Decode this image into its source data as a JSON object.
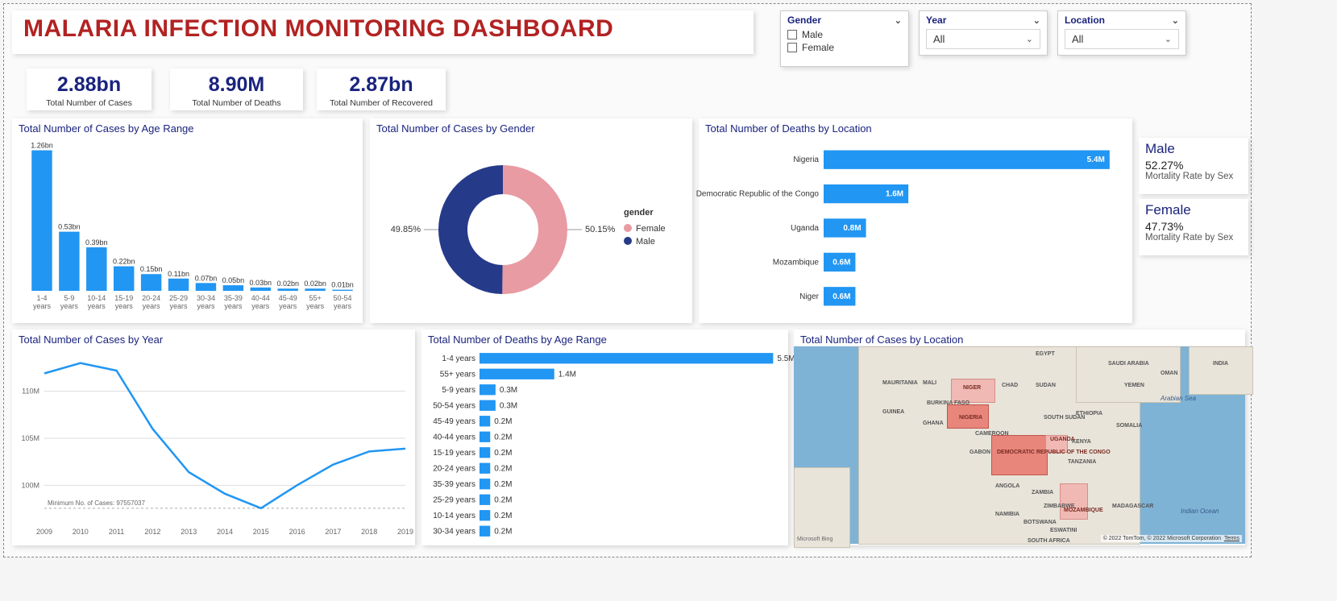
{
  "title": "MALARIA INFECTION MONITORING DASHBOARD",
  "filters": {
    "gender": {
      "label": "Gender",
      "options": [
        "Male",
        "Female"
      ]
    },
    "year": {
      "label": "Year",
      "selected": "All"
    },
    "location": {
      "label": "Location",
      "selected": "All"
    }
  },
  "kpis": {
    "cases": {
      "value": "2.88bn",
      "label": "Total Number of Cases"
    },
    "deaths": {
      "value": "8.90M",
      "label": "Total Number of Deaths"
    },
    "recovered": {
      "value": "2.87bn",
      "label": "Total Number of Recovered"
    }
  },
  "rate_cards": {
    "male": {
      "title": "Male",
      "pct": "52.27%",
      "sub": "Mortality Rate by Sex"
    },
    "female": {
      "title": "Female",
      "pct": "47.73%",
      "sub": "Mortality Rate by Sex"
    }
  },
  "cases_by_age": {
    "type": "bar",
    "title": "Total Number of Cases by Age Range",
    "bar_color": "#2196f3",
    "label_color": "#333333",
    "categories": [
      "1-4 years",
      "5-9 years",
      "10-14 years",
      "15-19 years",
      "20-24 years",
      "25-29 years",
      "30-34 years",
      "35-39 years",
      "40-44 years",
      "45-49 years",
      "55+ years",
      "50-54 years"
    ],
    "value_labels": [
      "1.26bn",
      "0.53bn",
      "0.39bn",
      "0.22bn",
      "0.15bn",
      "0.11bn",
      "0.07bn",
      "0.05bn",
      "0.03bn",
      "0.02bn",
      "0.02bn",
      "0.01bn"
    ],
    "values": [
      1.26,
      0.53,
      0.39,
      0.22,
      0.15,
      0.11,
      0.07,
      0.05,
      0.03,
      0.02,
      0.02,
      0.01
    ],
    "ymax": 1.3
  },
  "cases_by_gender": {
    "type": "donut",
    "title": "Total Number of Cases by Gender",
    "legend_title": "gender",
    "slices": [
      {
        "name": "Female",
        "pct": 50.15,
        "label": "50.15%",
        "color": "#e89ba3"
      },
      {
        "name": "Male",
        "pct": 49.85,
        "label": "49.85%",
        "color": "#263a8a"
      }
    ],
    "inner_radius_ratio": 0.55,
    "background_color": "#ffffff"
  },
  "deaths_by_location": {
    "type": "horizontal-bar",
    "title": "Total Number of Deaths by Location",
    "bar_color": "#2196f3",
    "value_color": "#ffffff",
    "categories": [
      "Nigeria",
      "Democratic Republic of the Congo",
      "Uganda",
      "Mozambique",
      "Niger"
    ],
    "value_labels": [
      "5.4M",
      "1.6M",
      "0.8M",
      "0.6M",
      "0.6M"
    ],
    "values": [
      5.4,
      1.6,
      0.8,
      0.6,
      0.6
    ],
    "xmax": 5.6
  },
  "cases_by_year": {
    "type": "line",
    "title": "Total Number of Cases by Year",
    "line_color": "#2196f3",
    "grid_color": "#dddddd",
    "x": [
      2009,
      2010,
      2011,
      2012,
      2013,
      2014,
      2015,
      2016,
      2017,
      2018,
      2019
    ],
    "y": [
      111.9,
      113.0,
      112.2,
      106.0,
      101.4,
      99.1,
      97.56,
      100.0,
      102.2,
      103.6,
      103.9
    ],
    "ylabels": [
      "100M",
      "105M",
      "110M"
    ],
    "yticks": [
      100,
      105,
      110
    ],
    "ylim": [
      96,
      114
    ],
    "min_line_value": 97.557037,
    "min_line_label": "Minimum No. of Cases: 97557037"
  },
  "deaths_by_age": {
    "type": "horizontal-bar",
    "title": "Total Number of Deaths by Age Range",
    "bar_color": "#2196f3",
    "categories": [
      "1-4 years",
      "55+ years",
      "5-9 years",
      "50-54 years",
      "45-49 years",
      "40-44 years",
      "15-19 years",
      "20-24 years",
      "35-39 years",
      "25-29 years",
      "10-14 years",
      "30-34 years"
    ],
    "value_labels": [
      "5.5M",
      "1.4M",
      "0.3M",
      "0.3M",
      "0.2M",
      "0.2M",
      "0.2M",
      "0.2M",
      "0.2M",
      "0.2M",
      "0.2M",
      "0.2M"
    ],
    "values": [
      5.5,
      1.4,
      0.3,
      0.3,
      0.2,
      0.2,
      0.2,
      0.2,
      0.2,
      0.2,
      0.2,
      0.2
    ],
    "xmax": 5.6
  },
  "cases_by_location_map": {
    "type": "map",
    "title": "Total Number of Cases by Location",
    "ocean_color": "#7eb3d6",
    "land_color": "#e8e4da",
    "highlight_color": "#e8867c",
    "highlight_light_color": "#f0b9b3",
    "highlighted_countries": [
      "NIGERIA",
      "DEMOCRATIC REPUBLIC OF THE CONGO",
      "UGANDA",
      "MOZAMBIQUE",
      "NIGER"
    ],
    "visible_country_labels": [
      "EGYPT",
      "SAUDI ARABIA",
      "OMAN",
      "INDIA",
      "YEMEN",
      "SUDAN",
      "CHAD",
      "NIGER",
      "MALI",
      "MAURITANIA",
      "BURKINA FASO",
      "GUINEA",
      "GHANA",
      "NIGERIA",
      "CAMEROON",
      "GABON",
      "SOUTH SUDAN",
      "ETHIOPIA",
      "SOMALIA",
      "KENYA",
      "UGANDA",
      "DEMOCRATIC REPUBLIC OF THE CONGO",
      "TANZANIA",
      "ANGOLA",
      "ZAMBIA",
      "NAMIBIA",
      "ZIMBABWE",
      "BOTSWANA",
      "MOZAMBIQUE",
      "MADAGASCAR",
      "ESWATINI",
      "SOUTH AFRICA"
    ],
    "sea_labels": [
      "Arabian Sea",
      "Indian Ocean"
    ],
    "attribution": "© 2022 TomTom, © 2022 Microsoft Corporation",
    "attribution_link": "Terms",
    "provider": "Microsoft Bing"
  }
}
